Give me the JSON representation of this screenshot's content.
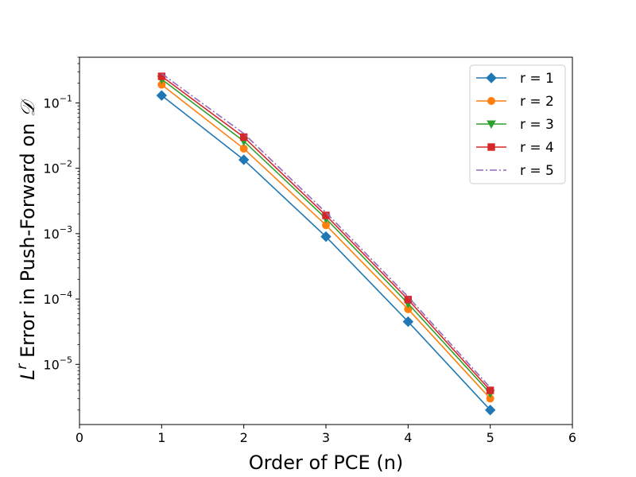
{
  "chart_data": {
    "type": "line",
    "xlabel": "Order of PCE (n)",
    "ylabel_prefix": "L",
    "ylabel_exponent": "r",
    "ylabel_suffix": " Error in Push-Forward on ",
    "ylabel_domain_symbol": "𝒟",
    "y_scale": "log",
    "xlim": [
      0,
      6
    ],
    "ylim": [
      1.2e-06,
      0.5
    ],
    "x_ticks": [
      0,
      1,
      2,
      3,
      4,
      5,
      6
    ],
    "x_tick_labels": [
      "0",
      "1",
      "2",
      "3",
      "4",
      "5",
      "6"
    ],
    "y_ticks": [
      1e-05,
      0.0001,
      0.001,
      0.01,
      0.1
    ],
    "y_tick_labels": [
      {
        "base": "10",
        "exp": "−5"
      },
      {
        "base": "10",
        "exp": "−4"
      },
      {
        "base": "10",
        "exp": "−3"
      },
      {
        "base": "10",
        "exp": "−2"
      },
      {
        "base": "10",
        "exp": "−1"
      }
    ],
    "grid": false,
    "legend_position": "top-right",
    "x": [
      1,
      2,
      3,
      4,
      5
    ],
    "series": [
      {
        "name": "r = 1",
        "color": "#1f77b4",
        "marker": "diamond",
        "linestyle": "solid",
        "values": [
          0.13,
          0.0135,
          0.0009,
          4.5e-05,
          2e-06
        ]
      },
      {
        "name": "r = 2",
        "color": "#ff7f0e",
        "marker": "circle",
        "linestyle": "solid",
        "values": [
          0.19,
          0.02,
          0.00135,
          7e-05,
          3e-06
        ]
      },
      {
        "name": "r = 3",
        "color": "#2ca02c",
        "marker": "triangle-down",
        "linestyle": "solid",
        "values": [
          0.23,
          0.026,
          0.0017,
          8.5e-05,
          3.6e-06
        ]
      },
      {
        "name": "r = 4",
        "color": "#d62728",
        "marker": "square",
        "linestyle": "solid",
        "values": [
          0.255,
          0.03,
          0.0019,
          9.8e-05,
          4e-06
        ]
      },
      {
        "name": "r = 5",
        "color": "#9467bd",
        "marker": "none",
        "linestyle": "dashdot",
        "values": [
          0.28,
          0.034,
          0.0021,
          0.000108,
          4.4e-06
        ]
      }
    ]
  }
}
